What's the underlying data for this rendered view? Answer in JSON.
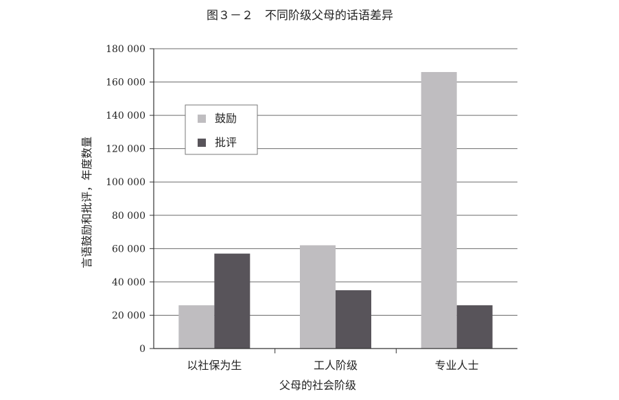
{
  "chart_data": {
    "type": "bar",
    "title": "图３－２　不同阶级父母的话语差异",
    "xlabel": "父母的社会阶级",
    "ylabel": "言语鼓励和批评，年度数量",
    "categories": [
      "以社保为生",
      "工人阶级",
      "专业人士"
    ],
    "series": [
      {
        "name": "鼓励",
        "values": [
          26000,
          62000,
          166000
        ],
        "color": "#bfbdc0"
      },
      {
        "name": "批评",
        "values": [
          57000,
          35000,
          26000
        ],
        "color": "#58545a"
      }
    ],
    "ylim": [
      0,
      180000
    ],
    "yticks": [
      0,
      20000,
      40000,
      60000,
      80000,
      100000,
      120000,
      140000,
      160000,
      180000
    ],
    "ytick_labels": [
      "0",
      "20 000",
      "40 000",
      "60 000",
      "80 000",
      "100 000",
      "120 000",
      "140 000",
      "160 000",
      "180 000"
    ],
    "grid": true,
    "legend_position": "upper-left"
  }
}
